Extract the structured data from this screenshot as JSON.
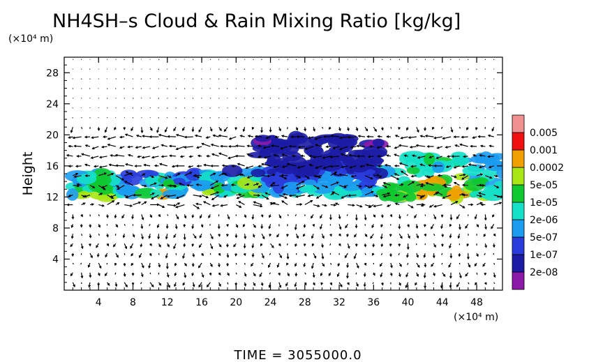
{
  "chart_data": {
    "type": "heatmap",
    "title": "NH4SH–s Cloud & Rain Mixing Ratio [kg/kg]",
    "ylabel": "Height",
    "x_unit": "(×10⁴ m)",
    "y_unit": "(×10⁴ m)",
    "xlim": [
      0,
      51
    ],
    "ylim": [
      0,
      30
    ],
    "x_ticks": [
      4,
      8,
      12,
      16,
      20,
      24,
      28,
      32,
      36,
      40,
      44,
      48
    ],
    "y_ticks": [
      4,
      8,
      12,
      16,
      20,
      24,
      28
    ],
    "colorbar": {
      "levels": [
        "2e-08",
        "1e-07",
        "5e-07",
        "2e-06",
        "1e-05",
        "5e-05",
        "0.0002",
        "0.001",
        "0.005"
      ],
      "colors": [
        "#8c1aa8",
        "#1c1ca6",
        "#2a3cdc",
        "#1c9cf0",
        "#14e0c8",
        "#10c830",
        "#a8e614",
        "#f0a000",
        "#f01010",
        "#f09090"
      ]
    },
    "cloud_regions": [
      {
        "x0": 0.2,
        "x1": 8.0,
        "y0": 11.9,
        "y1": 15.0,
        "peak": "0.001"
      },
      {
        "x0": 9.5,
        "x1": 14.0,
        "y0": 12.2,
        "y1": 15.0,
        "peak": "0.0002"
      },
      {
        "x0": 15.0,
        "x1": 19.0,
        "y0": 12.2,
        "y1": 15.2,
        "peak": "0.0002"
      },
      {
        "x0": 19.5,
        "x1": 24.0,
        "y0": 12.2,
        "y1": 15.5,
        "peak": "0.0002"
      },
      {
        "x0": 24.0,
        "x1": 36.5,
        "y0": 12.4,
        "y1": 15.5,
        "peak": "1e-05"
      },
      {
        "x0": 36.5,
        "x1": 51.0,
        "y0": 11.9,
        "y1": 17.5,
        "peak": "0.001"
      },
      {
        "x0": 22.5,
        "x1": 37.0,
        "y0": 15.0,
        "y1": 19.8,
        "peak": "1e-07"
      }
    ],
    "vector_field": "wind vectors on regular grid (arrows)"
  },
  "time_label": "TIME = 3055000.0"
}
